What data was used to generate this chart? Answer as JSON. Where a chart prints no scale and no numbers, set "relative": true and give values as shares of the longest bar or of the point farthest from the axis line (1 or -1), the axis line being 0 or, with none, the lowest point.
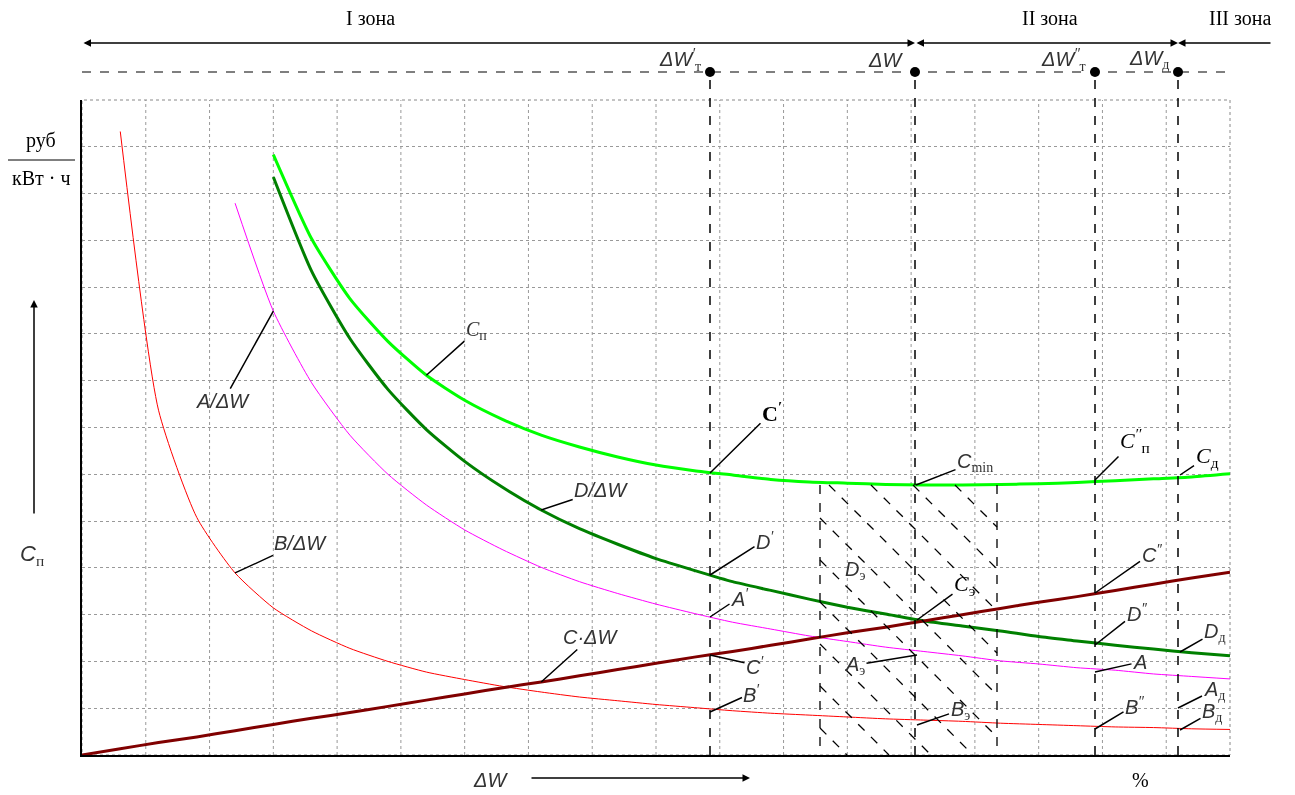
{
  "chart_data": {
    "type": "line",
    "relative": true,
    "grid": true,
    "legend": false,
    "marker": "none",
    "line_style": "solid",
    "xlabel": "ΔW",
    "ylabel": "C$_{п}$",
    "categories": [
      null,
      null,
      null,
      null,
      null,
      null,
      null,
      null,
      null,
      null,
      null,
      null,
      null,
      null,
      null,
      null,
      null,
      null,
      null,
      null,
      null,
      null,
      null,
      null,
      null,
      null,
      null,
      null,
      null,
      null,
      null
    ],
    "series": [
      {
        "name": "B/ΔW",
        "color": "#ff0000",
        "values": [
          null,
          1,
          0.553,
          0.381,
          0.292,
          0.236,
          0.199,
          0.171,
          0.15,
          0.133,
          0.121,
          0.11,
          0.101,
          0.093,
          0.087,
          0.081,
          0.076,
          0.071,
          0.067,
          0.064,
          0.061,
          0.058,
          0.056,
          0.054,
          0.051,
          0.049,
          0.047,
          0.045,
          0.044,
          0.042,
          0.041
        ]
      },
      {
        "name": "A/ΔW",
        "color": "#ff00ff",
        "values": [
          null,
          null,
          null,
          null,
          0.885,
          0.712,
          0.597,
          0.513,
          0.45,
          0.401,
          0.361,
          0.329,
          0.301,
          0.278,
          0.259,
          0.242,
          0.227,
          0.213,
          0.202,
          0.191,
          0.182,
          0.173,
          0.166,
          0.159,
          0.151,
          0.146,
          0.14,
          0.136,
          0.13,
          0.126,
          0.122
        ]
      },
      {
        "name": "D/ΔW",
        "color": "#008000",
        "values": [
          null,
          null,
          null,
          null,
          null,
          0.927,
          0.776,
          0.668,
          0.586,
          0.522,
          0.471,
          0.429,
          0.393,
          0.363,
          0.338,
          0.315,
          0.296,
          0.278,
          0.264,
          0.25,
          0.237,
          0.226,
          0.215,
          0.207,
          0.199,
          0.19,
          0.183,
          0.176,
          0.17,
          0.164,
          0.159
        ]
      },
      {
        "name": "C$_{п}$",
        "color": "#00ff00",
        "values": [
          null,
          null,
          null,
          null,
          null,
          0.963,
          0.828,
          0.732,
          0.663,
          0.609,
          0.569,
          0.538,
          0.513,
          0.494,
          0.478,
          0.465,
          0.456,
          0.449,
          0.442,
          0.438,
          0.436,
          0.434,
          0.433,
          0.433,
          0.434,
          0.435,
          0.437,
          0.44,
          0.443,
          0.446,
          0.451
        ]
      },
      {
        "name": "C·ΔW",
        "color": "#800000",
        "values": [
          0,
          0.01,
          0.02,
          0.029,
          0.039,
          0.049,
          0.059,
          0.068,
          0.078,
          0.088,
          0.098,
          0.108,
          0.117,
          0.127,
          0.137,
          0.147,
          0.157,
          0.166,
          0.176,
          0.186,
          0.196,
          0.205,
          0.215,
          0.225,
          0.235,
          0.245,
          0.254,
          0.264,
          0.274,
          0.284,
          0.293
        ]
      }
    ],
    "annotations": [
      "C$^{′}$",
      "C$_{min}$",
      "C$^{′′}$$_{п}$",
      "C$_{д}$",
      "D$^{′}$",
      "A$^{′}$",
      "C$^{′}$",
      "B$^{′}$",
      "D$_{э}$",
      "C$_{э}$",
      "A$_{э}$",
      "B$_{э}$",
      "C$^{′′}$",
      "D$^{′′}$",
      "A",
      "B$^{′′}$",
      "D$_{д}$",
      "A$_{д}$",
      "B$_{д}$",
      "I зона",
      "II зона",
      "III зона",
      "руб",
      "кВт · ч",
      "%",
      "ΔW$^{′}$$_{т}$",
      "ΔW",
      "ΔW$^{′′}$$_{т}$",
      "ΔW$_{д}$"
    ]
  }
}
